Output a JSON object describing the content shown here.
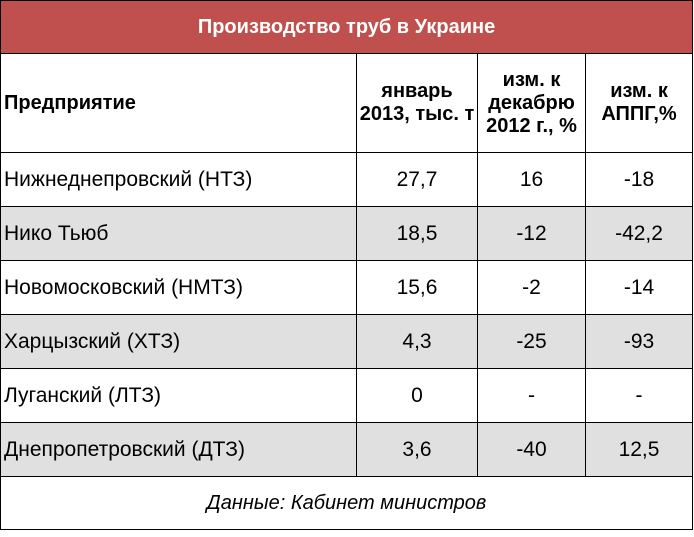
{
  "title": "Производство труб в Украине",
  "columns": [
    "Предприятие",
    "январь 2013, тыс. т",
    "изм. к декабрю 2012 г., %",
    "изм. к АППГ,%"
  ],
  "rows": [
    [
      "Нижнеднепровский (НТЗ)",
      "27,7",
      "16",
      "-18"
    ],
    [
      "Нико Тьюб",
      "18,5",
      "-12",
      "-42,2"
    ],
    [
      "Новомосковский (НМТЗ)",
      "15,6",
      "-2",
      "-14"
    ],
    [
      "Харцызский (ХТЗ)",
      "4,3",
      "-25",
      "-93"
    ],
    [
      "Луганский (ЛТЗ)",
      "0",
      "-",
      "-"
    ],
    [
      "Днепропетровский (ДТЗ)",
      "3,6",
      "-40",
      "12,5"
    ]
  ],
  "source": "Данные: Кабинет министров",
  "colors": {
    "title_bg": "#c0504d",
    "title_text": "#ffffff",
    "shaded_row": "#e0e0e0"
  },
  "chart_data": {
    "type": "table",
    "title": "Производство труб в Украине",
    "columns": [
      "Предприятие",
      "январь 2013, тыс. т",
      "изм. к декабрю 2012 г., %",
      "изм. к АППГ,%"
    ],
    "rows": [
      [
        "Нижнеднепровский (НТЗ)",
        27.7,
        16,
        -18
      ],
      [
        "Нико Тьюб",
        18.5,
        -12,
        -42.2
      ],
      [
        "Новомосковский (НМТЗ)",
        15.6,
        -2,
        -14
      ],
      [
        "Харцызский (ХТЗ)",
        4.3,
        -25,
        -93
      ],
      [
        "Луганский (ЛТЗ)",
        0,
        null,
        null
      ],
      [
        "Днепропетровский (ДТЗ)",
        3.6,
        -40,
        12.5
      ]
    ]
  }
}
